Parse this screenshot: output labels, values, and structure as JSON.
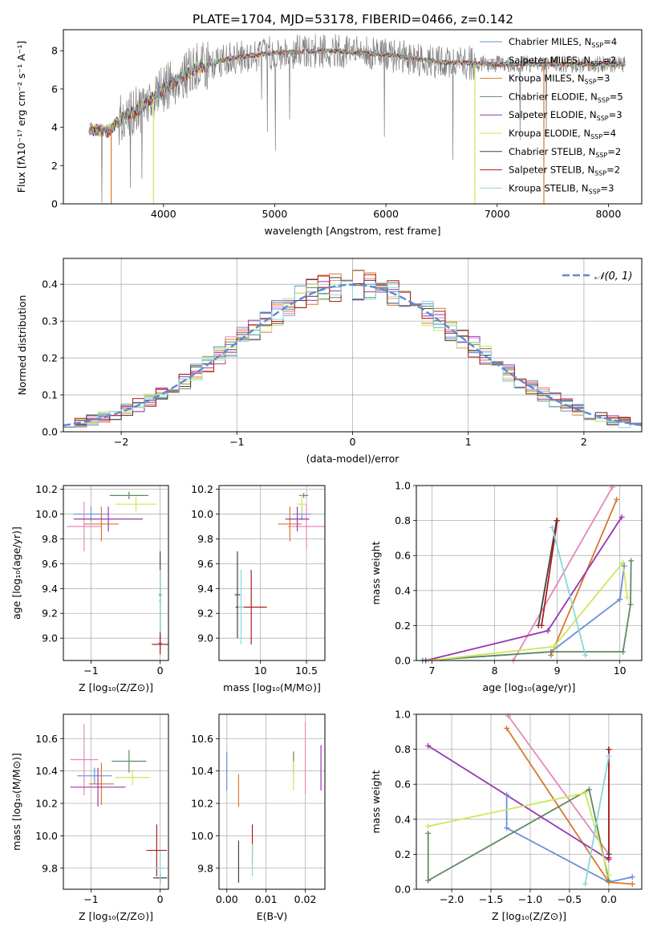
{
  "figure_title": "PLATE=1704, MJD=53178, FIBERID=0466, z=0.142",
  "colors": {
    "chabrier_miles": "#6a8fd8",
    "salpeter_miles": "#e687bb",
    "kroupa_miles": "#d9782c",
    "chabrier_elodie": "#5f8a60",
    "salpeter_elodie": "#9a36b0",
    "kroupa_elodie": "#cce85a",
    "chabrier_stelib": "#444444",
    "salpeter_stelib": "#b01c1c",
    "kroupa_stelib": "#86d8dc",
    "data": "#808080",
    "gaussian": "#5b8bd6"
  },
  "chart_data": [
    {
      "id": "spectrum",
      "type": "line",
      "xlabel": "wavelength [Angstrom, rest frame]",
      "ylabel": "Flux [fλ10⁻¹⁷ erg cm⁻² s⁻¹ A⁻¹]",
      "xlim": [
        3100,
        8300
      ],
      "ylim": [
        0,
        9.1
      ],
      "xticks": [
        4000,
        5000,
        6000,
        7000,
        8000
      ],
      "yticks": [
        0,
        2,
        4,
        6,
        8
      ],
      "legend_position": "right",
      "legend": [
        {
          "label": "Chabrier MILES, N",
          "sub": "SSP",
          "tail": "=4",
          "color": "#6a8fd8"
        },
        {
          "label": "Salpeter MILES, N",
          "sub": "SSP",
          "tail": "=2",
          "color": "#e687bb"
        },
        {
          "label": "Kroupa MILES, N",
          "sub": "SSP",
          "tail": "=3",
          "color": "#d9782c"
        },
        {
          "label": "Chabrier ELODIE, N",
          "sub": "SSP",
          "tail": "=5",
          "color": "#5f8a60"
        },
        {
          "label": "Salpeter ELODIE, N",
          "sub": "SSP",
          "tail": "=3",
          "color": "#9a36b0"
        },
        {
          "label": "Kroupa ELODIE, N",
          "sub": "SSP",
          "tail": "=4",
          "color": "#cce85a"
        },
        {
          "label": "Chabrier STELIB, N",
          "sub": "SSP",
          "tail": "=2",
          "color": "#444444"
        },
        {
          "label": "Salpeter STELIB, N",
          "sub": "SSP",
          "tail": "=2",
          "color": "#b01c1c"
        },
        {
          "label": "Kroupa STELIB, N",
          "sub": "SSP",
          "tail": "=3",
          "color": "#86d8dc"
        }
      ],
      "continuum_knots": [
        [
          3330,
          3.9
        ],
        [
          3500,
          3.8
        ],
        [
          3650,
          4.6
        ],
        [
          3800,
          5.0
        ],
        [
          3950,
          5.8
        ],
        [
          4100,
          6.4
        ],
        [
          4300,
          7.1
        ],
        [
          4600,
          7.6
        ],
        [
          5000,
          7.9
        ],
        [
          5500,
          8.0
        ],
        [
          6000,
          7.8
        ],
        [
          6500,
          7.4
        ],
        [
          7000,
          7.3
        ],
        [
          7400,
          7.3
        ],
        [
          7800,
          7.3
        ],
        [
          8150,
          7.3
        ]
      ],
      "dropouts": [
        [
          3530,
          "#d9782c"
        ],
        [
          3910,
          "#cce85a"
        ],
        [
          6800,
          "#cce85a"
        ],
        [
          7420,
          "#d9782c"
        ]
      ]
    },
    {
      "id": "residuals",
      "type": "step",
      "xlabel": "(data-model)/error",
      "ylabel": "Normed distribution",
      "xlim": [
        -2.5,
        2.5
      ],
      "ylim": [
        0,
        0.47
      ],
      "xticks": [
        -2,
        -1,
        0,
        1,
        2
      ],
      "yticks": [
        0.0,
        0.1,
        0.2,
        0.3,
        0.4
      ],
      "legend_position": "top-right",
      "legend_label": "𝒩(0, 1)",
      "bin_width": 0.1,
      "n_histograms": 9
    },
    {
      "id": "z-age",
      "type": "scatter",
      "xlabel": "Z [log₁₀(Z/Z⊙)]",
      "ylabel": "age  [log₁₀(age/yr)]",
      "xlim": [
        -1.4,
        0.12
      ],
      "ylim": [
        8.82,
        10.23
      ],
      "xticks": [
        -1,
        0
      ],
      "yticks": [
        9.0,
        9.2,
        9.4,
        9.6,
        9.8,
        10.0,
        10.2
      ],
      "points": [
        {
          "x": -1.0,
          "y": 10.0,
          "ex": 0.25,
          "ey": 0.06,
          "c": "#6a8fd8"
        },
        {
          "x": 0.0,
          "y": 8.96,
          "ex": 0.03,
          "ey": 0.05,
          "c": "#6a8fd8"
        },
        {
          "x": -1.1,
          "y": 9.9,
          "ex": 0.25,
          "ey": 0.2,
          "c": "#e687bb"
        },
        {
          "x": -0.85,
          "y": 9.92,
          "ex": 0.25,
          "ey": 0.14,
          "c": "#d9782c"
        },
        {
          "x": -0.45,
          "y": 10.15,
          "ex": 0.28,
          "ey": 0.03,
          "c": "#5f8a60"
        },
        {
          "x": -0.75,
          "y": 9.96,
          "ex": 0.5,
          "ey": 0.1,
          "c": "#9a36b0"
        },
        {
          "x": -0.35,
          "y": 10.08,
          "ex": 0.3,
          "ey": 0.06,
          "c": "#cce85a"
        },
        {
          "x": 0.0,
          "y": 9.35,
          "ex": 0.02,
          "ey": 0.35,
          "c": "#444444"
        },
        {
          "x": 0.0,
          "y": 8.95,
          "ex": 0.12,
          "ey": 0.08,
          "c": "#b01c1c"
        },
        {
          "x": 0.0,
          "y": 9.3,
          "ex": 0.02,
          "ey": 0.25,
          "c": "#86d8dc"
        }
      ]
    },
    {
      "id": "mass-age",
      "type": "scatter",
      "xlabel": "mass [log₁₀(M/M⊙)]",
      "ylabel": "",
      "xlim": [
        9.55,
        10.7
      ],
      "ylim": [
        8.82,
        10.23
      ],
      "xticks": [
        10.0,
        10.5
      ],
      "yticks": [
        9.0,
        9.2,
        9.4,
        9.6,
        9.8,
        10.0,
        10.2
      ],
      "points": [
        {
          "x": 10.45,
          "y": 10.0,
          "ex": 0.1,
          "ey": 0.05,
          "c": "#6a8fd8"
        },
        {
          "x": 10.5,
          "y": 9.9,
          "ex": 0.2,
          "ey": 0.18,
          "c": "#e687bb"
        },
        {
          "x": 10.32,
          "y": 9.92,
          "ex": 0.13,
          "ey": 0.14,
          "c": "#d9782c"
        },
        {
          "x": 10.47,
          "y": 10.15,
          "ex": 0.05,
          "ey": 0.02,
          "c": "#5f8a60"
        },
        {
          "x": 10.4,
          "y": 9.96,
          "ex": 0.13,
          "ey": 0.1,
          "c": "#9a36b0"
        },
        {
          "x": 10.45,
          "y": 10.08,
          "ex": 0.05,
          "ey": 0.08,
          "c": "#cce85a"
        },
        {
          "x": 9.75,
          "y": 9.35,
          "ex": 0.03,
          "ey": 0.35,
          "c": "#444444"
        },
        {
          "x": 9.9,
          "y": 9.25,
          "ex": 0.17,
          "ey": 0.3,
          "c": "#b01c1c"
        },
        {
          "x": 9.79,
          "y": 9.25,
          "ex": 0.03,
          "ey": 0.3,
          "c": "#86d8dc"
        }
      ]
    },
    {
      "id": "age-weight",
      "type": "line",
      "xlabel": "age  [log₁₀(age/yr)]",
      "ylabel": "mass weight",
      "xlim": [
        6.75,
        10.35
      ],
      "ylim": [
        0,
        1.0
      ],
      "xticks": [
        7,
        8,
        9,
        10
      ],
      "yticks": [
        0.0,
        0.2,
        0.4,
        0.6,
        0.8,
        1.0
      ],
      "series": [
        {
          "c": "#6a8fd8",
          "pts": [
            [
              6.9,
              0.0
            ],
            [
              8.9,
              0.05
            ],
            [
              10.0,
              0.35
            ],
            [
              10.07,
              0.54
            ]
          ]
        },
        {
          "c": "#e687bb",
          "pts": [
            [
              8.3,
              0.0
            ],
            [
              9.88,
              0.99
            ]
          ]
        },
        {
          "c": "#d9782c",
          "pts": [
            [
              8.9,
              0.03
            ],
            [
              9.95,
              0.92
            ]
          ]
        },
        {
          "c": "#5f8a60",
          "pts": [
            [
              6.85,
              0.0
            ],
            [
              8.9,
              0.05
            ],
            [
              10.05,
              0.05
            ],
            [
              10.17,
              0.32
            ],
            [
              10.18,
              0.57
            ]
          ]
        },
        {
          "c": "#9a36b0",
          "pts": [
            [
              6.9,
              0.0
            ],
            [
              8.85,
              0.17
            ],
            [
              10.03,
              0.82
            ]
          ]
        },
        {
          "c": "#cce85a",
          "pts": [
            [
              6.95,
              0.0
            ],
            [
              8.95,
              0.08
            ],
            [
              10.05,
              0.56
            ],
            [
              10.12,
              0.36
            ]
          ]
        },
        {
          "c": "#444444",
          "pts": [
            [
              8.7,
              0.2
            ],
            [
              8.99,
              0.8
            ]
          ]
        },
        {
          "c": "#b01c1c",
          "pts": [
            [
              8.75,
              0.2
            ],
            [
              9.0,
              0.8
            ]
          ]
        },
        {
          "c": "#86d8dc",
          "pts": [
            [
              8.92,
              0.76
            ],
            [
              9.45,
              0.03
            ]
          ]
        }
      ]
    },
    {
      "id": "z-mass",
      "type": "scatter",
      "xlabel": "Z [log₁₀(Z/Z⊙)]",
      "ylabel": "mass [log₁₀(M/M⊙)]",
      "xlim": [
        -1.4,
        0.12
      ],
      "ylim": [
        9.67,
        10.75
      ],
      "xticks": [
        -1,
        0
      ],
      "yticks": [
        9.8,
        10.0,
        10.2,
        10.4,
        10.6
      ],
      "points": [
        {
          "x": -0.95,
          "y": 10.37,
          "ex": 0.25,
          "ey": 0.05,
          "c": "#6a8fd8"
        },
        {
          "x": -1.1,
          "y": 10.47,
          "ex": 0.2,
          "ey": 0.22,
          "c": "#e687bb"
        },
        {
          "x": -0.85,
          "y": 10.32,
          "ex": 0.18,
          "ey": 0.13,
          "c": "#d9782c"
        },
        {
          "x": -0.45,
          "y": 10.46,
          "ex": 0.25,
          "ey": 0.07,
          "c": "#5f8a60"
        },
        {
          "x": -0.9,
          "y": 10.3,
          "ex": 0.4,
          "ey": 0.12,
          "c": "#9a36b0"
        },
        {
          "x": -0.4,
          "y": 10.36,
          "ex": 0.25,
          "ey": 0.05,
          "c": "#cce85a"
        },
        {
          "x": 0.0,
          "y": 9.74,
          "ex": 0.1,
          "ey": 0.03,
          "c": "#444444"
        },
        {
          "x": -0.05,
          "y": 9.91,
          "ex": 0.15,
          "ey": 0.16,
          "c": "#b01c1c"
        },
        {
          "x": 0.0,
          "y": 9.8,
          "ex": 0.06,
          "ey": 0.1,
          "c": "#86d8dc"
        }
      ]
    },
    {
      "id": "ebv-mass",
      "type": "scatter",
      "xlabel": "E(B-V)",
      "ylabel": "",
      "xlim": [
        -0.002,
        0.025
      ],
      "ylim": [
        9.67,
        10.75
      ],
      "xticks": [
        0.0,
        0.01,
        0.02
      ],
      "xtick_labels": [
        "0.00",
        "0.01",
        "0.02"
      ],
      "yticks": [
        9.8,
        10.0,
        10.2,
        10.4,
        10.6
      ],
      "points": [
        {
          "x": 0.0,
          "y": 10.4,
          "ex": 0,
          "ey": 0.12,
          "c": "#6a8fd8"
        },
        {
          "x": 0.02,
          "y": 10.48,
          "ex": 0,
          "ey": 0.22,
          "c": "#e687bb"
        },
        {
          "x": 0.003,
          "y": 10.28,
          "ex": 0,
          "ey": 0.1,
          "c": "#d9782c"
        },
        {
          "x": 0.017,
          "y": 10.45,
          "ex": 0,
          "ey": 0.07,
          "c": "#5f8a60"
        },
        {
          "x": 0.024,
          "y": 10.42,
          "ex": 0,
          "ey": 0.14,
          "c": "#9a36b0"
        },
        {
          "x": 0.017,
          "y": 10.37,
          "ex": 0,
          "ey": 0.09,
          "c": "#cce85a"
        },
        {
          "x": 0.003,
          "y": 9.84,
          "ex": 0,
          "ey": 0.13,
          "c": "#444444"
        },
        {
          "x": 0.0065,
          "y": 9.95,
          "ex": 0,
          "ey": 0.12,
          "c": "#b01c1c"
        },
        {
          "x": 0.0065,
          "y": 9.85,
          "ex": 0,
          "ey": 0.1,
          "c": "#86d8dc"
        }
      ]
    },
    {
      "id": "z-weight",
      "type": "line",
      "xlabel": "Z [log₁₀(Z/Z⊙)]",
      "ylabel": "mass weight",
      "xlim": [
        -2.45,
        0.42
      ],
      "ylim": [
        0,
        1.0
      ],
      "xticks": [
        -2.0,
        -1.5,
        -1.0,
        -0.5,
        0.0
      ],
      "xtick_labels": [
        "−2.0",
        "−1.5",
        "−1.0",
        "−0.5",
        "0.0"
      ],
      "yticks": [
        0.0,
        0.2,
        0.4,
        0.6,
        0.8,
        1.0
      ],
      "series": [
        {
          "c": "#6a8fd8",
          "pts": [
            [
              -1.3,
              0.54
            ],
            [
              -1.3,
              0.35
            ],
            [
              0.0,
              0.04
            ],
            [
              0.3,
              0.07
            ]
          ]
        },
        {
          "c": "#e687bb",
          "pts": [
            [
              -1.28,
              0.99
            ],
            [
              0.0,
              0.2
            ]
          ]
        },
        {
          "c": "#d9782c",
          "pts": [
            [
              -1.3,
              0.92
            ],
            [
              0.0,
              0.04
            ],
            [
              0.3,
              0.03
            ]
          ]
        },
        {
          "c": "#5f8a60",
          "pts": [
            [
              -2.3,
              0.32
            ],
            [
              -2.3,
              0.05
            ],
            [
              -0.25,
              0.57
            ],
            [
              0.0,
              0.05
            ]
          ]
        },
        {
          "c": "#9a36b0",
          "pts": [
            [
              -2.3,
              0.82
            ],
            [
              0.0,
              0.17
            ]
          ]
        },
        {
          "c": "#cce85a",
          "pts": [
            [
              -2.3,
              0.36
            ],
            [
              -0.3,
              0.55
            ],
            [
              0.0,
              0.08
            ]
          ]
        },
        {
          "c": "#444444",
          "pts": [
            [
              0.0,
              0.8
            ],
            [
              0.0,
              0.2
            ]
          ]
        },
        {
          "c": "#b01c1c",
          "pts": [
            [
              0.0,
              0.8
            ],
            [
              0.0,
              0.18
            ]
          ]
        },
        {
          "c": "#86d8dc",
          "pts": [
            [
              0.0,
              0.76
            ],
            [
              -0.3,
              0.03
            ]
          ]
        }
      ]
    }
  ]
}
